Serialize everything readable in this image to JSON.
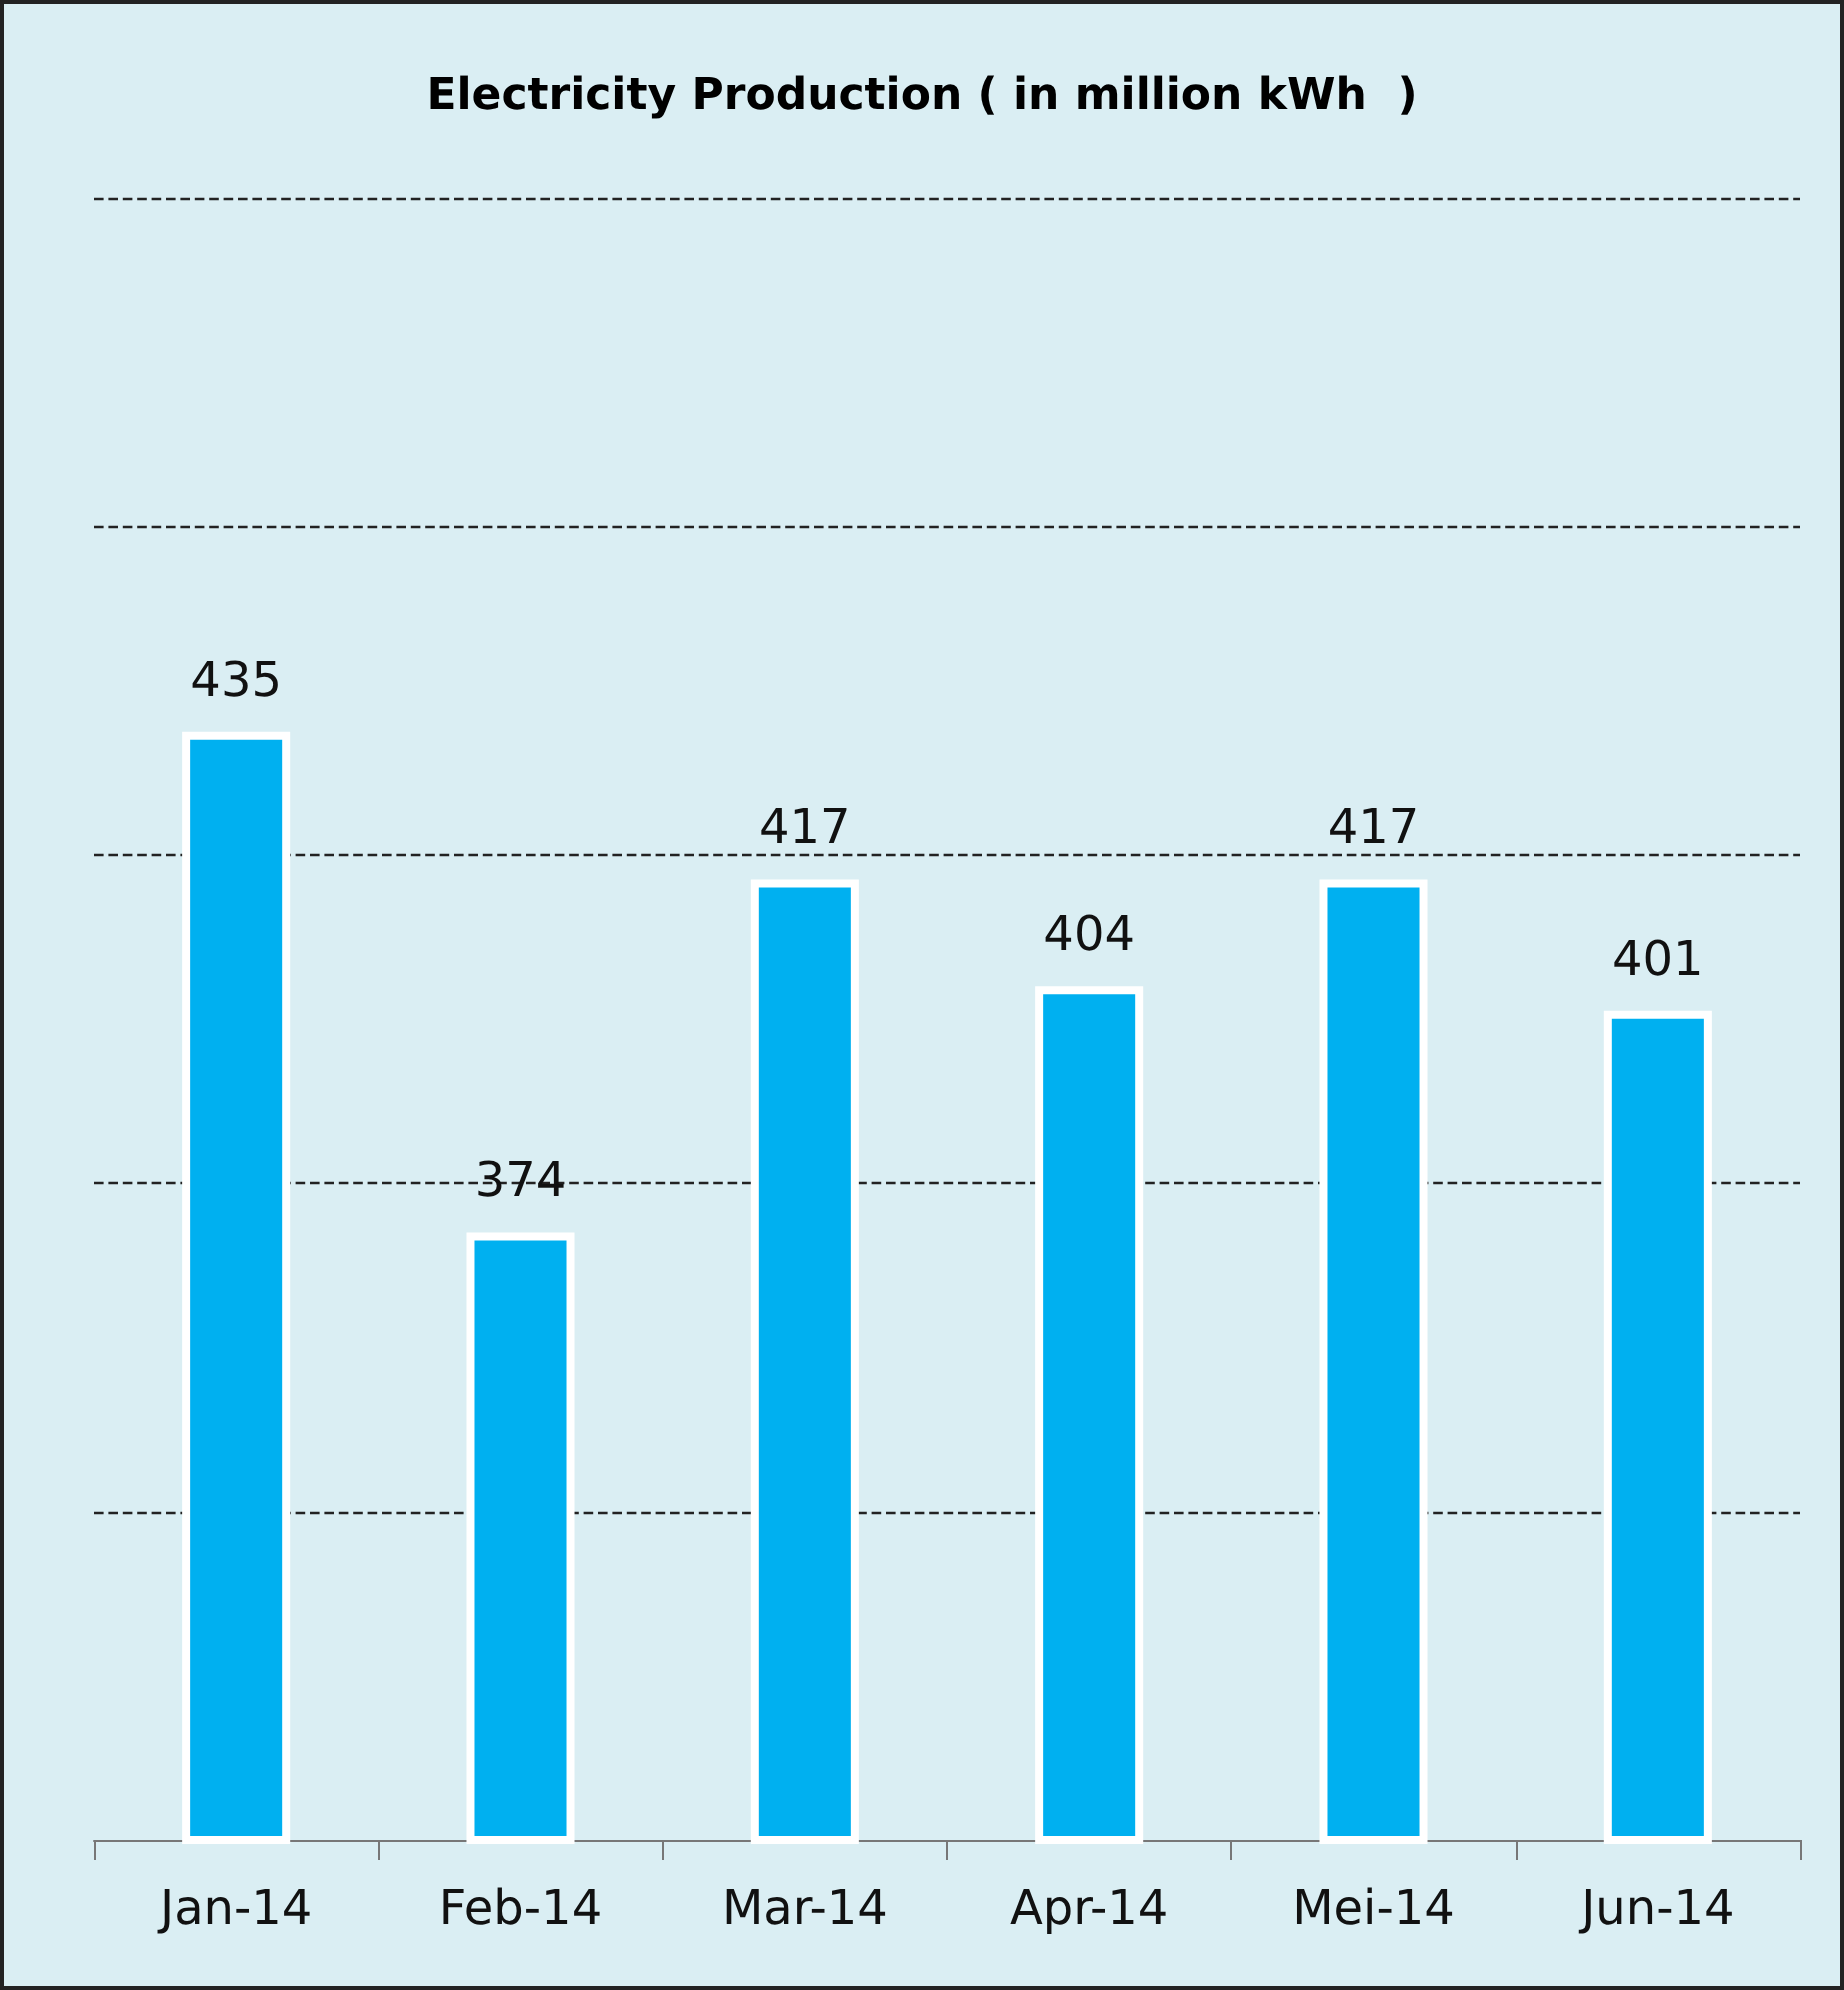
{
  "chart_data": {
    "type": "bar",
    "title": "Electricity Production ( in million kWh  )",
    "categories": [
      "Jan-14",
      "Feb-14",
      "Mar-14",
      "Apr-14",
      "Mei-14",
      "Jun-14"
    ],
    "values": [
      435,
      374,
      417,
      404,
      417,
      401
    ],
    "color": "#00b0f0",
    "ylim": [
      300,
      500
    ],
    "yticks": [
      {
        "value": 340,
        "label": null
      },
      {
        "value": 380,
        "label": null
      },
      {
        "value": 420,
        "label": null
      },
      {
        "value": 460,
        "label": null
      },
      {
        "value": 500,
        "label": null
      }
    ],
    "tick_labels": "x",
    "grid": "y",
    "data_labels": true
  }
}
